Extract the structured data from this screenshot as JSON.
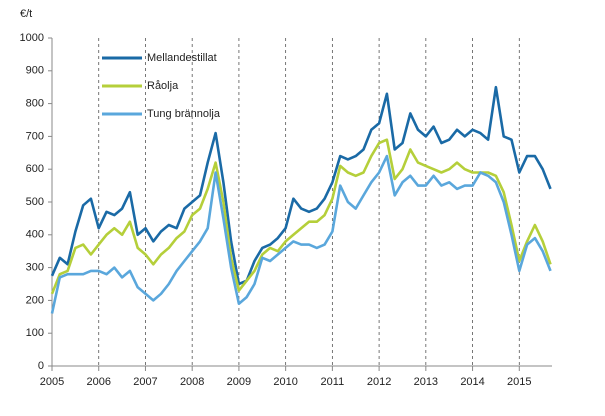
{
  "chart_data": {
    "type": "line",
    "y_label": "€/t",
    "x": [
      2005,
      2005.167,
      2005.333,
      2005.5,
      2005.667,
      2005.833,
      2006,
      2006.167,
      2006.333,
      2006.5,
      2006.667,
      2006.833,
      2007,
      2007.167,
      2007.333,
      2007.5,
      2007.667,
      2007.833,
      2008,
      2008.167,
      2008.333,
      2008.5,
      2008.667,
      2008.833,
      2009,
      2009.167,
      2009.333,
      2009.5,
      2009.667,
      2009.833,
      2010,
      2010.167,
      2010.333,
      2010.5,
      2010.667,
      2010.833,
      2011,
      2011.167,
      2011.333,
      2011.5,
      2011.667,
      2011.833,
      2012,
      2012.167,
      2012.333,
      2012.5,
      2012.667,
      2012.833,
      2013,
      2013.167,
      2013.333,
      2013.5,
      2013.667,
      2013.833,
      2014,
      2014.167,
      2014.333,
      2014.5,
      2014.667,
      2014.833,
      2015,
      2015.167,
      2015.333,
      2015.5,
      2015.667
    ],
    "series": [
      {
        "name": "Mellandestillat",
        "color": "#1a6aa6",
        "values": [
          275,
          330,
          310,
          410,
          490,
          510,
          420,
          470,
          460,
          480,
          530,
          400,
          420,
          380,
          410,
          430,
          420,
          480,
          500,
          520,
          620,
          710,
          560,
          380,
          250,
          260,
          320,
          360,
          370,
          390,
          420,
          510,
          480,
          470,
          480,
          510,
          560,
          640,
          630,
          640,
          660,
          720,
          740,
          830,
          660,
          680,
          770,
          720,
          700,
          730,
          680,
          690,
          720,
          700,
          720,
          710,
          690,
          850,
          700,
          690,
          590,
          640,
          640,
          600,
          540
        ]
      },
      {
        "name": "Råolja",
        "color": "#b5cf3a",
        "values": [
          220,
          280,
          290,
          360,
          370,
          340,
          370,
          400,
          420,
          400,
          440,
          360,
          340,
          310,
          340,
          360,
          390,
          410,
          460,
          480,
          540,
          620,
          500,
          330,
          230,
          260,
          290,
          340,
          360,
          350,
          380,
          400,
          420,
          440,
          440,
          460,
          510,
          610,
          590,
          580,
          590,
          640,
          680,
          690,
          570,
          600,
          660,
          620,
          610,
          600,
          590,
          600,
          620,
          600,
          590,
          590,
          590,
          580,
          530,
          430,
          320,
          380,
          430,
          380,
          310
        ]
      },
      {
        "name": "Tung brännolja",
        "color": "#5aa7dc",
        "values": [
          160,
          270,
          280,
          280,
          280,
          290,
          290,
          280,
          300,
          270,
          290,
          240,
          220,
          200,
          220,
          250,
          290,
          320,
          350,
          380,
          420,
          590,
          450,
          300,
          190,
          210,
          250,
          330,
          320,
          340,
          360,
          380,
          370,
          370,
          360,
          370,
          410,
          550,
          500,
          480,
          520,
          560,
          590,
          640,
          520,
          560,
          580,
          550,
          550,
          580,
          550,
          560,
          540,
          550,
          550,
          590,
          580,
          560,
          500,
          400,
          290,
          370,
          390,
          350,
          290
        ]
      }
    ],
    "xlim": [
      2005,
      2015.7
    ],
    "xticks": [
      2005,
      2006,
      2007,
      2008,
      2009,
      2010,
      2011,
      2012,
      2013,
      2014,
      2015
    ],
    "ylim": [
      0,
      1000
    ],
    "yticks": [
      0,
      100,
      200,
      300,
      400,
      500,
      600,
      700,
      800,
      900,
      1000
    ],
    "grid": "x",
    "legend": "upper-left"
  }
}
